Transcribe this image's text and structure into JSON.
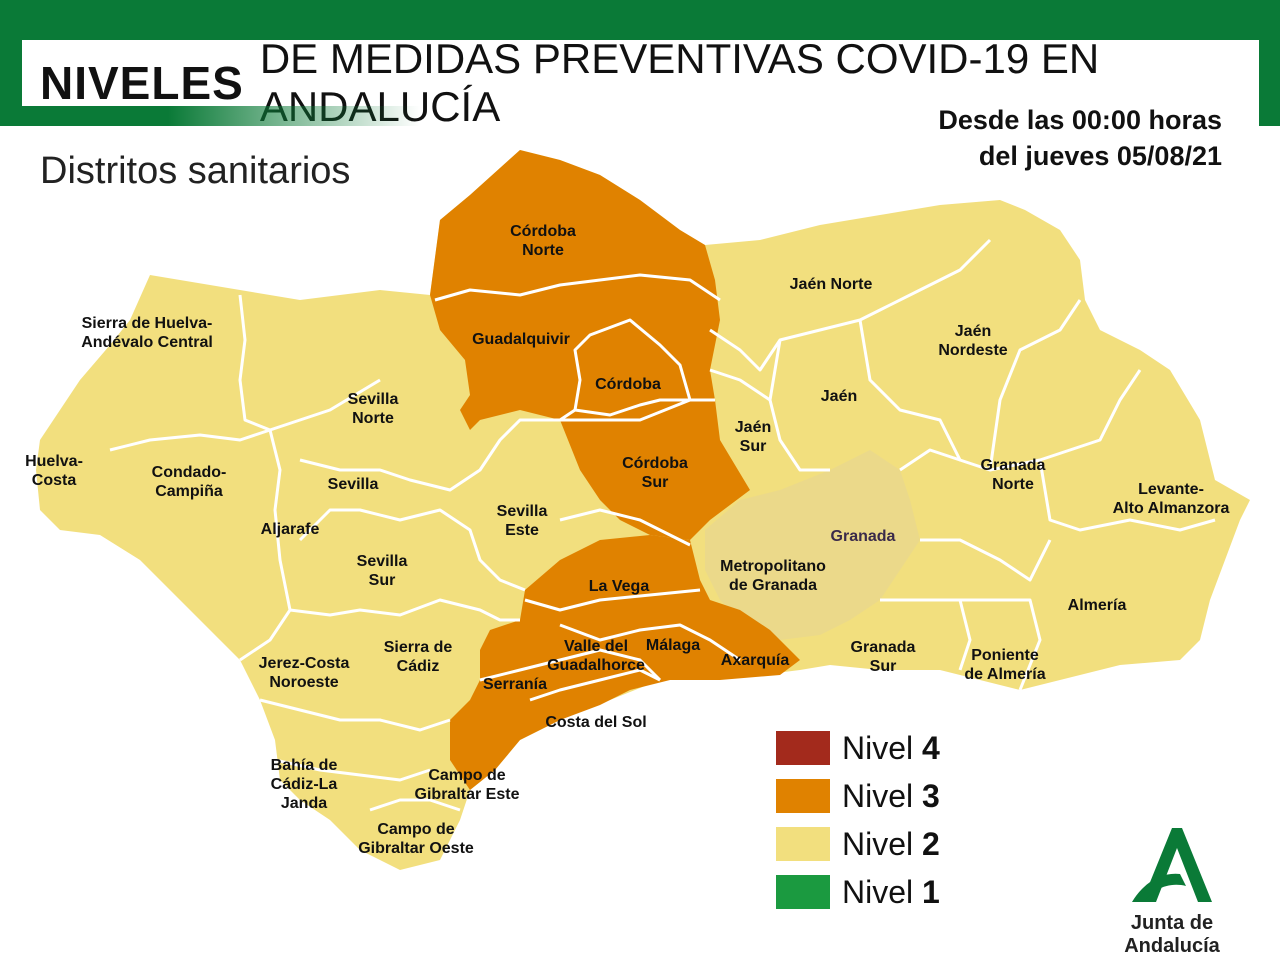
{
  "header": {
    "title_bold": "NIVELES",
    "title_rest": "DE MEDIDAS PREVENTIVAS COVID-19 EN ANDALUCÍA",
    "subtitle": "Distritos sanitarios",
    "date_line1": "Desde las 00:00 horas",
    "date_line2": "del jueves 05/08/21"
  },
  "colors": {
    "nivel4": "#a32a1c",
    "nivel3": "#e08200",
    "nivel2": "#f2df7e",
    "nivel1": "#1b9a40",
    "granada_metro": "#ebd98a",
    "border": "#ffffff",
    "brand_green": "#0a7a37"
  },
  "legend": [
    {
      "prefix": "Nivel",
      "number": "4",
      "level": "nivel4"
    },
    {
      "prefix": "Nivel",
      "number": "3",
      "level": "nivel3"
    },
    {
      "prefix": "Nivel",
      "number": "2",
      "level": "nivel2"
    },
    {
      "prefix": "Nivel",
      "number": "1",
      "level": "nivel1"
    }
  ],
  "districts": {
    "cordoba_norte": {
      "line1": "Córdoba",
      "line2": "Norte",
      "level": 3
    },
    "guadalquivir": {
      "line1": "Guadalquivir",
      "level": 3
    },
    "cordoba": {
      "line1": "Córdoba",
      "level": 3
    },
    "cordoba_sur": {
      "line1": "Córdoba",
      "line2": "Sur",
      "level": 3
    },
    "la_vega": {
      "line1": "La Vega",
      "level": 3
    },
    "valle_guadalhorce": {
      "line1": "Valle del",
      "line2": "Guadalhorce",
      "level": 3
    },
    "malaga": {
      "line1": "Málaga",
      "level": 3
    },
    "axarquia": {
      "line1": "Axarquía",
      "level": 3
    },
    "serrania": {
      "line1": "Serranía",
      "level": 3
    },
    "costa_del_sol": {
      "line1": "Costa del Sol",
      "level": 3
    },
    "sierra_huelva": {
      "line1": "Sierra de Huelva-",
      "line2": "Andévalo Central",
      "level": 2
    },
    "huelva_costa": {
      "line1": "Huelva-",
      "line2": "Costa",
      "level": 2
    },
    "condado_campina": {
      "line1": "Condado-",
      "line2": "Campiña",
      "level": 2
    },
    "aljarafe": {
      "line1": "Aljarafe",
      "level": 2
    },
    "sevilla_norte": {
      "line1": "Sevilla",
      "line2": "Norte",
      "level": 2
    },
    "sevilla": {
      "line1": "Sevilla",
      "level": 2
    },
    "sevilla_sur": {
      "line1": "Sevilla",
      "line2": "Sur",
      "level": 2
    },
    "sevilla_este": {
      "line1": "Sevilla",
      "line2": "Este",
      "level": 2
    },
    "jerez_costa": {
      "line1": "Jerez-Costa",
      "line2": "Noroeste",
      "level": 2
    },
    "sierra_cadiz": {
      "line1": "Sierra de",
      "line2": "Cádiz",
      "level": 2
    },
    "bahia_cadiz": {
      "line1": "Bahía de",
      "line2": "Cádiz-La",
      "line3": "Janda",
      "level": 2
    },
    "campo_gib_este": {
      "line1": "Campo de",
      "line2": "Gibraltar Este",
      "level": 2
    },
    "campo_gib_oeste": {
      "line1": "Campo de",
      "line2": "Gibraltar Oeste",
      "level": 2
    },
    "jaen_norte": {
      "line1": "Jaén Norte",
      "level": 2
    },
    "jaen_nordeste": {
      "line1": "Jaén",
      "line2": "Nordeste",
      "level": 2
    },
    "jaen": {
      "line1": "Jaén",
      "level": 2
    },
    "jaen_sur": {
      "line1": "Jaén",
      "line2": "Sur",
      "level": 2
    },
    "granada_norte": {
      "line1": "Granada",
      "line2": "Norte",
      "level": 2
    },
    "levante": {
      "line1": "Levante-",
      "line2": "Alto Almanzora",
      "level": 2
    },
    "granada_city": {
      "line1": "Granada",
      "level": 2
    },
    "metro_granada": {
      "line1": "Metropolitano",
      "line2": "de Granada",
      "level": 2
    },
    "granada_sur": {
      "line1": "Granada",
      "line2": "Sur",
      "level": 2
    },
    "almeria": {
      "line1": "Almería",
      "level": 2
    },
    "poniente": {
      "line1": "Poniente",
      "line2": "de Almería",
      "level": 2
    }
  },
  "logo": {
    "text": "Junta de Andalucía",
    "icon": "junta-andalucia-logo-icon"
  }
}
